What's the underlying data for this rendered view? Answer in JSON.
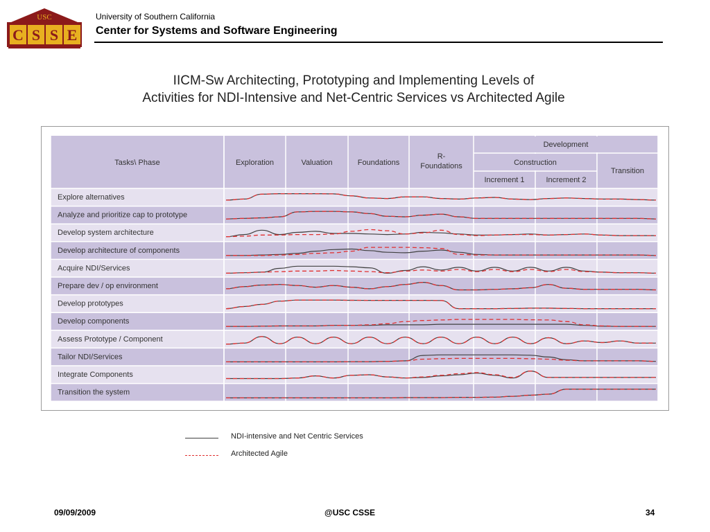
{
  "header": {
    "logo_top": "USC",
    "logo_letters": [
      "C",
      "S",
      "S",
      "E"
    ],
    "university": "University of Southern California",
    "center": "Center for Systems and Software Engineering"
  },
  "slide": {
    "title_line1": "IICM-Sw Architecting, Prototyping and Implementing Levels of",
    "title_line2": "Activities for NDI-Intensive and Net-Centric Services vs Architected Agile"
  },
  "colors": {
    "header_cell": "#c9c1dd",
    "row_odd": "#e6e1ef",
    "row_even": "#c9c1dd",
    "ndi_line": "#404040",
    "agile_line": "#e03030",
    "logo_maroon": "#8b1a1a",
    "logo_gold": "#e8b020"
  },
  "chart_data": {
    "type": "line",
    "header": {
      "tasks": "Tasks\\ Phase",
      "phases": [
        "Exploration",
        "Valuation",
        "Foundations",
        "R-\nFoundations"
      ],
      "development": "Development",
      "construction": "Construction",
      "increments": [
        "Increment 1",
        "Increment 2"
      ],
      "transition": "Transition"
    },
    "rows": [
      "Explore alternatives",
      "Analyze and prioritize cap to prototype",
      "Develop system architecture",
      "Develop architecture of components",
      "Acquire NDI/Services",
      "Prepare dev / op environment",
      "Develop prototypes",
      "Develop components",
      "Assess Prototype / Component",
      "Tailor NDI/Services",
      "Integrate Components",
      "Transition the system"
    ],
    "series": [
      {
        "name": "NDI-intensive and Net Centric Services",
        "style": "solid",
        "color": "#404040"
      },
      {
        "name": "Architected Agile",
        "style": "dashed",
        "color": "#e03030"
      }
    ],
    "activity_levels_note": "activity level per task across phases, 0=low 1=high",
    "x": [
      0,
      1,
      2,
      3,
      4,
      5,
      6,
      7,
      8,
      9,
      10,
      11,
      12,
      13,
      14,
      15,
      16,
      17,
      18,
      19,
      20,
      21,
      22,
      23,
      24
    ],
    "ndi": [
      [
        0.3,
        0.4,
        0.85,
        0.9,
        0.9,
        0.9,
        0.88,
        0.7,
        0.5,
        0.45,
        0.6,
        0.6,
        0.45,
        0.4,
        0.5,
        0.55,
        0.4,
        0.35,
        0.45,
        0.5,
        0.45,
        0.4,
        0.4,
        0.35,
        0.3
      ],
      [
        0.2,
        0.25,
        0.3,
        0.4,
        0.85,
        0.9,
        0.9,
        0.85,
        0.7,
        0.45,
        0.4,
        0.55,
        0.65,
        0.4,
        0.25,
        0.25,
        0.25,
        0.25,
        0.25,
        0.25,
        0.25,
        0.25,
        0.25,
        0.25,
        0.2
      ],
      [
        0.2,
        0.4,
        0.8,
        0.4,
        0.6,
        0.7,
        0.5,
        0.5,
        0.45,
        0.4,
        0.45,
        0.6,
        0.55,
        0.45,
        0.35,
        0.35,
        0.4,
        0.45,
        0.35,
        0.4,
        0.45,
        0.35,
        0.3,
        0.3,
        0.3
      ],
      [
        0.1,
        0.1,
        0.15,
        0.2,
        0.3,
        0.5,
        0.65,
        0.7,
        0.55,
        0.4,
        0.35,
        0.5,
        0.6,
        0.4,
        0.2,
        0.15,
        0.15,
        0.15,
        0.15,
        0.15,
        0.15,
        0.15,
        0.15,
        0.15,
        0.1
      ],
      [
        0.1,
        0.15,
        0.2,
        0.55,
        0.75,
        0.75,
        0.75,
        0.7,
        0.6,
        0.1,
        0.35,
        0.7,
        0.4,
        0.65,
        0.3,
        0.65,
        0.3,
        0.65,
        0.3,
        0.65,
        0.3,
        0.2,
        0.15,
        0.15,
        0.1
      ],
      [
        0.3,
        0.5,
        0.65,
        0.7,
        0.6,
        0.45,
        0.6,
        0.45,
        0.3,
        0.5,
        0.7,
        0.9,
        0.6,
        0.2,
        0.2,
        0.25,
        0.3,
        0.4,
        0.7,
        0.35,
        0.25,
        0.25,
        0.25,
        0.25,
        0.2
      ],
      [
        0.1,
        0.3,
        0.5,
        0.8,
        0.9,
        0.9,
        0.9,
        0.88,
        0.87,
        0.87,
        0.87,
        0.87,
        0.86,
        0.1,
        0.1,
        0.1,
        0.12,
        0.15,
        0.15,
        0.12,
        0.1,
        0.1,
        0.1,
        0.1,
        0.1
      ],
      [
        0.1,
        0.1,
        0.12,
        0.15,
        0.15,
        0.15,
        0.2,
        0.2,
        0.2,
        0.25,
        0.25,
        0.25,
        0.3,
        0.3,
        0.3,
        0.3,
        0.3,
        0.3,
        0.3,
        0.3,
        0.2,
        0.12,
        0.1,
        0.1,
        0.1
      ],
      [
        0.1,
        0.2,
        0.8,
        0.15,
        0.75,
        0.15,
        0.75,
        0.15,
        0.75,
        0.15,
        0.75,
        0.15,
        0.75,
        0.15,
        0.75,
        0.15,
        0.75,
        0.15,
        0.7,
        0.15,
        0.4,
        0.25,
        0.4,
        0.2,
        0.2
      ],
      [
        0.1,
        0.1,
        0.1,
        0.1,
        0.1,
        0.1,
        0.1,
        0.12,
        0.12,
        0.15,
        0.2,
        0.7,
        0.75,
        0.75,
        0.75,
        0.75,
        0.75,
        0.72,
        0.55,
        0.3,
        0.2,
        0.2,
        0.2,
        0.2,
        0.15
      ],
      [
        0.2,
        0.2,
        0.2,
        0.2,
        0.25,
        0.45,
        0.25,
        0.5,
        0.55,
        0.35,
        0.25,
        0.3,
        0.45,
        0.55,
        0.7,
        0.5,
        0.25,
        0.9,
        0.3,
        0.3,
        0.3,
        0.3,
        0.3,
        0.3,
        0.3
      ],
      [
        0.05,
        0.05,
        0.05,
        0.05,
        0.05,
        0.05,
        0.05,
        0.05,
        0.05,
        0.05,
        0.08,
        0.08,
        0.08,
        0.1,
        0.1,
        0.12,
        0.2,
        0.3,
        0.4,
        0.85,
        0.85,
        0.85,
        0.85,
        0.85,
        0.85
      ]
    ],
    "agile": [
      [
        0.3,
        0.4,
        0.85,
        0.9,
        0.9,
        0.9,
        0.88,
        0.7,
        0.5,
        0.45,
        0.6,
        0.6,
        0.45,
        0.4,
        0.5,
        0.55,
        0.4,
        0.35,
        0.45,
        0.5,
        0.45,
        0.4,
        0.4,
        0.35,
        0.3
      ],
      [
        0.2,
        0.25,
        0.3,
        0.4,
        0.85,
        0.9,
        0.9,
        0.85,
        0.7,
        0.45,
        0.4,
        0.55,
        0.65,
        0.4,
        0.25,
        0.25,
        0.25,
        0.25,
        0.25,
        0.25,
        0.25,
        0.25,
        0.25,
        0.25,
        0.2
      ],
      [
        0.2,
        0.25,
        0.35,
        0.35,
        0.4,
        0.4,
        0.45,
        0.7,
        0.85,
        0.75,
        0.45,
        0.55,
        0.8,
        0.4,
        0.3,
        0.35,
        0.4,
        0.4,
        0.35,
        0.4,
        0.45,
        0.35,
        0.3,
        0.3,
        0.3
      ],
      [
        0.1,
        0.1,
        0.1,
        0.15,
        0.2,
        0.3,
        0.35,
        0.5,
        0.85,
        0.85,
        0.85,
        0.82,
        0.75,
        0.2,
        0.15,
        0.15,
        0.15,
        0.15,
        0.15,
        0.15,
        0.15,
        0.15,
        0.15,
        0.15,
        0.1
      ],
      [
        0.1,
        0.15,
        0.2,
        0.25,
        0.3,
        0.3,
        0.35,
        0.3,
        0.25,
        0.15,
        0.3,
        0.4,
        0.3,
        0.45,
        0.25,
        0.45,
        0.25,
        0.45,
        0.25,
        0.45,
        0.25,
        0.2,
        0.15,
        0.15,
        0.1
      ],
      [
        0.3,
        0.5,
        0.65,
        0.7,
        0.6,
        0.45,
        0.6,
        0.45,
        0.3,
        0.5,
        0.7,
        0.9,
        0.6,
        0.2,
        0.2,
        0.25,
        0.3,
        0.4,
        0.7,
        0.35,
        0.25,
        0.25,
        0.25,
        0.25,
        0.2
      ],
      [
        0.1,
        0.3,
        0.5,
        0.8,
        0.9,
        0.9,
        0.9,
        0.88,
        0.87,
        0.87,
        0.87,
        0.87,
        0.86,
        0.1,
        0.1,
        0.1,
        0.12,
        0.15,
        0.15,
        0.12,
        0.1,
        0.1,
        0.1,
        0.1,
        0.1
      ],
      [
        0.1,
        0.1,
        0.12,
        0.15,
        0.15,
        0.15,
        0.2,
        0.2,
        0.25,
        0.35,
        0.55,
        0.65,
        0.7,
        0.75,
        0.75,
        0.75,
        0.75,
        0.72,
        0.7,
        0.55,
        0.25,
        0.15,
        0.1,
        0.1,
        0.1
      ],
      [
        0.1,
        0.2,
        0.8,
        0.15,
        0.75,
        0.15,
        0.75,
        0.15,
        0.75,
        0.15,
        0.75,
        0.15,
        0.75,
        0.15,
        0.75,
        0.15,
        0.75,
        0.15,
        0.7,
        0.15,
        0.4,
        0.25,
        0.4,
        0.2,
        0.2
      ],
      [
        0.1,
        0.1,
        0.1,
        0.1,
        0.1,
        0.1,
        0.1,
        0.12,
        0.12,
        0.15,
        0.2,
        0.35,
        0.4,
        0.42,
        0.42,
        0.42,
        0.42,
        0.4,
        0.35,
        0.25,
        0.2,
        0.2,
        0.2,
        0.2,
        0.15
      ],
      [
        0.2,
        0.2,
        0.2,
        0.2,
        0.25,
        0.45,
        0.25,
        0.5,
        0.55,
        0.35,
        0.25,
        0.35,
        0.5,
        0.65,
        0.75,
        0.55,
        0.3,
        0.9,
        0.3,
        0.3,
        0.3,
        0.3,
        0.3,
        0.3,
        0.3
      ],
      [
        0.05,
        0.05,
        0.05,
        0.05,
        0.05,
        0.05,
        0.05,
        0.05,
        0.05,
        0.05,
        0.08,
        0.08,
        0.08,
        0.1,
        0.1,
        0.12,
        0.2,
        0.3,
        0.4,
        0.85,
        0.85,
        0.85,
        0.85,
        0.85,
        0.85
      ]
    ]
  },
  "legend": {
    "ndi_label": "NDI-intensive and Net Centric Services",
    "agile_label": "Architected Agile"
  },
  "footer": {
    "date": "09/09/2009",
    "center": "@USC CSSE",
    "page": "34"
  }
}
